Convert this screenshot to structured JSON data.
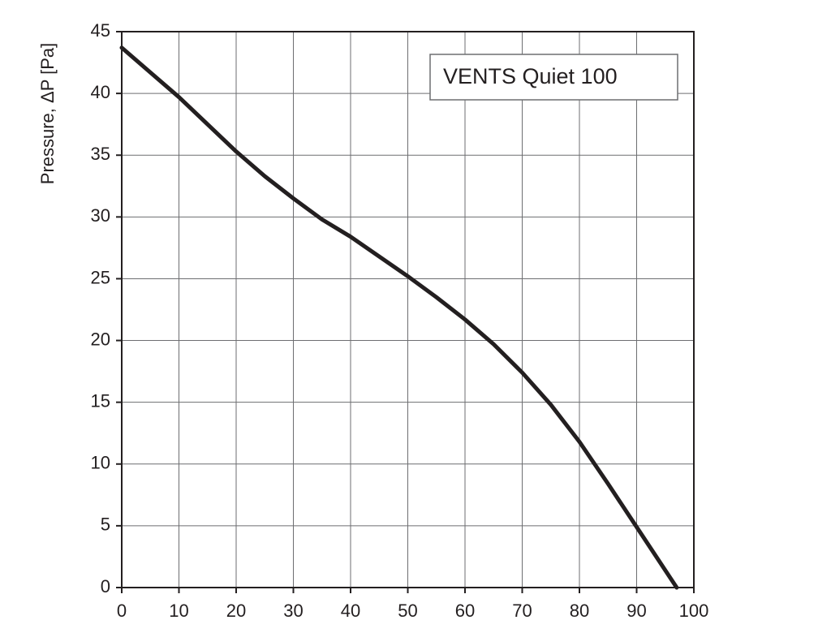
{
  "chart_data": {
    "type": "line",
    "y_label": "Pressure, ΔP [Pa]",
    "x": [
      0,
      5,
      10,
      15,
      20,
      25,
      30,
      35,
      40,
      45,
      50,
      55,
      60,
      65,
      70,
      75,
      80,
      85,
      90,
      97
    ],
    "series": [
      {
        "name": "VENTS Quiet 100",
        "color": "#231f20",
        "values": [
          43.7,
          41.7,
          39.7,
          37.5,
          35.3,
          33.3,
          31.5,
          29.8,
          28.4,
          26.8,
          25.2,
          23.5,
          21.7,
          19.7,
          17.4,
          14.8,
          11.8,
          8.4,
          4.9,
          0
        ]
      }
    ],
    "xlim": [
      0,
      100
    ],
    "xticks": [
      0,
      10,
      20,
      30,
      40,
      50,
      60,
      70,
      80,
      90,
      100
    ],
    "ylim": [
      0,
      45
    ],
    "yticks": [
      0,
      5,
      10,
      15,
      20,
      25,
      30,
      35,
      40,
      45
    ],
    "grid": true,
    "legend": "top-right"
  }
}
